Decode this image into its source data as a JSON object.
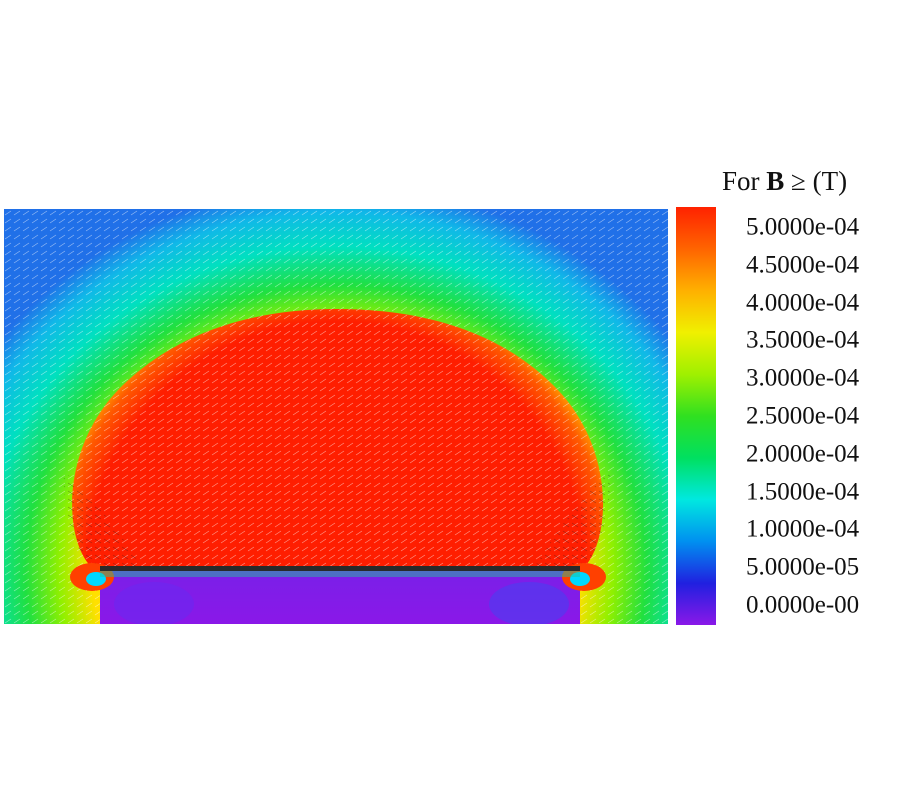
{
  "chart_data": {
    "type": "heatmap",
    "title_parts": {
      "prefix": "For ",
      "symbol": "B",
      "suffix": " ≥ (T)"
    },
    "colorscale": {
      "ticks": [
        "5.0000e-04",
        "4.5000e-04",
        "4.0000e-04",
        "3.5000e-04",
        "3.0000e-04",
        "2.5000e-04",
        "2.0000e-04",
        "1.5000e-04",
        "1.0000e-04",
        "5.0000e-05",
        "0.0000e-00"
      ],
      "tick_values": [
        0.0005,
        0.00045,
        0.0004,
        0.00035,
        0.0003,
        0.00025,
        0.0002,
        0.00015,
        0.0001,
        5e-05,
        0.0
      ],
      "min": 0.0,
      "max": 0.0005,
      "colors": [
        "#ff2200",
        "#ff6400",
        "#ffb000",
        "#f0f000",
        "#a0f000",
        "#30e020",
        "#00e060",
        "#00e8e0",
        "#0090f0",
        "#2020e0",
        "#8a18e8"
      ]
    },
    "field_regions": {
      "dome_color": "#ff1e00",
      "lower_region_color": "#8a18e8",
      "outer_color": "#10b0e8",
      "conductor_color": "#2a2a2a"
    }
  }
}
